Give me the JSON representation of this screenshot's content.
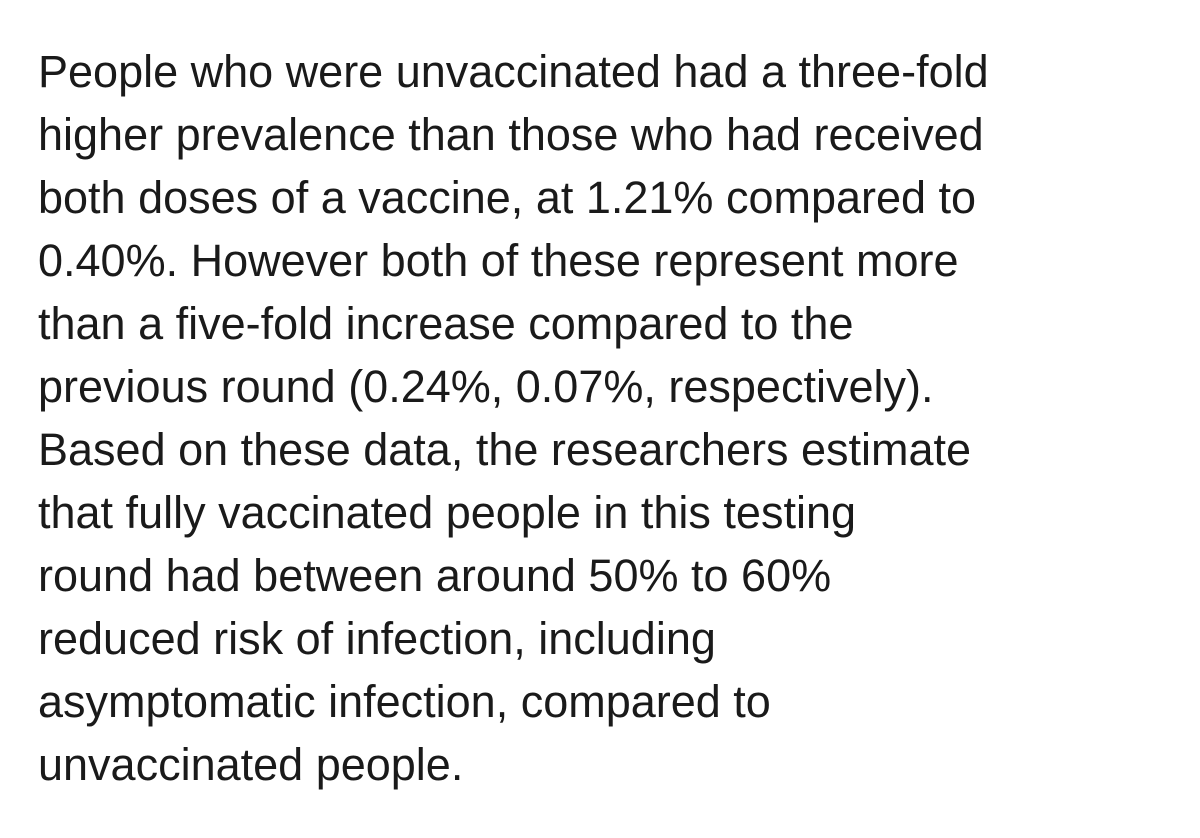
{
  "paragraph": {
    "lines": [
      "People who were unvaccinated had a three-fold",
      "higher prevalence than those who had received",
      "both doses of a vaccine, at 1.21% compared to",
      "0.40%. However both of these represent more",
      "than a five-fold increase compared to the",
      "previous round (0.24%, 0.07%, respectively).",
      "Based on these data, the researchers estimate",
      "that fully vaccinated people in this testing",
      "round had between around 50% to 60%",
      "reduced risk of infection, including",
      "asymptomatic infection, compared to",
      "unvaccinated people."
    ]
  }
}
